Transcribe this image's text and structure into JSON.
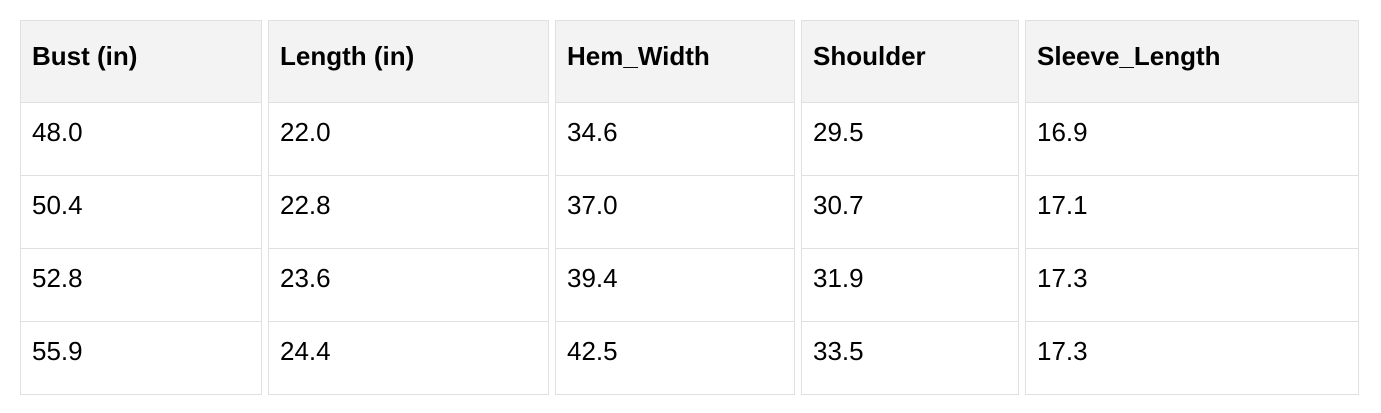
{
  "chart_data": {
    "type": "table",
    "title": "",
    "columns": [
      "Bust (in)",
      "Length (in)",
      "Hem_Width",
      "Shoulder",
      "Sleeve_Length"
    ],
    "rows": [
      [
        "48.0",
        "22.0",
        "34.6",
        "29.5",
        "16.9"
      ],
      [
        "50.4",
        "22.8",
        "37.0",
        "30.7",
        "17.1"
      ],
      [
        "52.8",
        "23.6",
        "39.4",
        "31.9",
        "17.3"
      ],
      [
        "55.9",
        "24.4",
        "42.5",
        "33.5",
        "17.3"
      ]
    ]
  },
  "colors": {
    "header_bg": "#f3f3f3",
    "border": "#e0e0e0",
    "text": "#000000",
    "page_bg": "#ffffff"
  }
}
